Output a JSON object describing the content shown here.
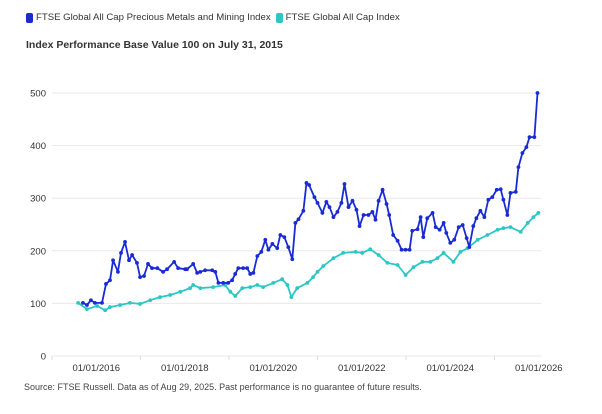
{
  "chart_data": {
    "type": "line",
    "title": "Index Performance Base Value 100 on July 31, 2015",
    "xlabel": "",
    "ylabel": "",
    "xlim": [
      2015.0,
      2026.05
    ],
    "ylim": [
      0,
      500
    ],
    "grid": true,
    "legend_placement": "top-left",
    "y_ticks": [
      0,
      100,
      200,
      300,
      400,
      500
    ],
    "x_ticks": [
      {
        "year": 2016.0,
        "label": "01/01/2016"
      },
      {
        "year": 2018.0,
        "label": "01/01/2018"
      },
      {
        "year": 2020.0,
        "label": "01/01/2020"
      },
      {
        "year": 2022.0,
        "label": "01/01/2022"
      },
      {
        "year": 2024.0,
        "label": "01/01/2024"
      },
      {
        "year": 2026.0,
        "label": "01/01/2026"
      }
    ],
    "series": [
      {
        "name": "FTSE Global All Cap Precious Metals and Mining Index",
        "color": "#1a2bd4",
        "points": [
          [
            2015.7,
            101
          ],
          [
            2015.79,
            97
          ],
          [
            2015.88,
            106
          ],
          [
            2015.97,
            101
          ],
          [
            2016.13,
            101
          ],
          [
            2016.22,
            137
          ],
          [
            2016.31,
            144
          ],
          [
            2016.38,
            182
          ],
          [
            2016.49,
            160
          ],
          [
            2016.56,
            196
          ],
          [
            2016.65,
            217
          ],
          [
            2016.74,
            182
          ],
          [
            2016.81,
            192
          ],
          [
            2016.92,
            177
          ],
          [
            2016.99,
            150
          ],
          [
            2017.08,
            152
          ],
          [
            2017.17,
            175
          ],
          [
            2017.26,
            167
          ],
          [
            2017.38,
            167
          ],
          [
            2017.51,
            160
          ],
          [
            2017.6,
            165
          ],
          [
            2017.76,
            179
          ],
          [
            2017.85,
            167
          ],
          [
            2018.01,
            165
          ],
          [
            2018.05,
            165
          ],
          [
            2018.19,
            175
          ],
          [
            2018.28,
            158
          ],
          [
            2018.35,
            160
          ],
          [
            2018.46,
            163
          ],
          [
            2018.62,
            163
          ],
          [
            2018.69,
            160
          ],
          [
            2018.76,
            139
          ],
          [
            2018.87,
            139
          ],
          [
            2018.98,
            139
          ],
          [
            2019.07,
            144
          ],
          [
            2019.14,
            156
          ],
          [
            2019.21,
            167
          ],
          [
            2019.32,
            167
          ],
          [
            2019.41,
            167
          ],
          [
            2019.48,
            156
          ],
          [
            2019.55,
            158
          ],
          [
            2019.64,
            190
          ],
          [
            2019.73,
            198
          ],
          [
            2019.82,
            221
          ],
          [
            2019.89,
            202
          ],
          [
            2019.98,
            213
          ],
          [
            2020.09,
            205
          ],
          [
            2020.16,
            230
          ],
          [
            2020.25,
            226
          ],
          [
            2020.34,
            207
          ],
          [
            2020.43,
            184
          ],
          [
            2020.5,
            253
          ],
          [
            2020.57,
            260
          ],
          [
            2020.68,
            276
          ],
          [
            2020.75,
            329
          ],
          [
            2020.81,
            325
          ],
          [
            2020.93,
            302
          ],
          [
            2021.0,
            291
          ],
          [
            2021.11,
            272
          ],
          [
            2021.2,
            293
          ],
          [
            2021.27,
            283
          ],
          [
            2021.36,
            264
          ],
          [
            2021.45,
            274
          ],
          [
            2021.54,
            291
          ],
          [
            2021.61,
            327
          ],
          [
            2021.7,
            283
          ],
          [
            2021.79,
            295
          ],
          [
            2021.88,
            278
          ],
          [
            2021.95,
            247
          ],
          [
            2022.04,
            268
          ],
          [
            2022.15,
            268
          ],
          [
            2022.24,
            274
          ],
          [
            2022.31,
            259
          ],
          [
            2022.38,
            295
          ],
          [
            2022.47,
            316
          ],
          [
            2022.56,
            289
          ],
          [
            2022.62,
            268
          ],
          [
            2022.71,
            230
          ],
          [
            2022.81,
            219
          ],
          [
            2022.9,
            202
          ],
          [
            2022.99,
            202
          ],
          [
            2023.08,
            202
          ],
          [
            2023.14,
            238
          ],
          [
            2023.26,
            241
          ],
          [
            2023.33,
            264
          ],
          [
            2023.39,
            226
          ],
          [
            2023.48,
            262
          ],
          [
            2023.6,
            272
          ],
          [
            2023.67,
            245
          ],
          [
            2023.76,
            240
          ],
          [
            2023.85,
            253
          ],
          [
            2023.91,
            234
          ],
          [
            2024.0,
            215
          ],
          [
            2024.09,
            221
          ],
          [
            2024.19,
            245
          ],
          [
            2024.28,
            249
          ],
          [
            2024.37,
            224
          ],
          [
            2024.43,
            207
          ],
          [
            2024.52,
            247
          ],
          [
            2024.59,
            262
          ],
          [
            2024.68,
            276
          ],
          [
            2024.77,
            264
          ],
          [
            2024.86,
            297
          ],
          [
            2024.95,
            302
          ],
          [
            2025.05,
            316
          ],
          [
            2025.14,
            317
          ],
          [
            2025.2,
            297
          ],
          [
            2025.29,
            268
          ],
          [
            2025.36,
            310
          ],
          [
            2025.48,
            312
          ],
          [
            2025.54,
            359
          ],
          [
            2025.63,
            386
          ],
          [
            2025.72,
            397
          ],
          [
            2025.79,
            416
          ],
          [
            2025.9,
            416
          ],
          [
            2025.97,
            500
          ]
        ]
      },
      {
        "name": "FTSE Global All Cap Index",
        "color": "#2cc7c4",
        "points": [
          [
            2015.59,
            101
          ],
          [
            2015.79,
            89
          ],
          [
            2016.02,
            95
          ],
          [
            2016.2,
            87
          ],
          [
            2016.31,
            93
          ],
          [
            2016.54,
            97
          ],
          [
            2016.76,
            101
          ],
          [
            2016.99,
            99
          ],
          [
            2017.22,
            106
          ],
          [
            2017.44,
            112
          ],
          [
            2017.67,
            116
          ],
          [
            2017.9,
            122
          ],
          [
            2018.12,
            129
          ],
          [
            2018.19,
            135
          ],
          [
            2018.35,
            129
          ],
          [
            2018.64,
            131
          ],
          [
            2018.91,
            135
          ],
          [
            2019.03,
            122
          ],
          [
            2019.14,
            114
          ],
          [
            2019.3,
            129
          ],
          [
            2019.48,
            131
          ],
          [
            2019.64,
            135
          ],
          [
            2019.77,
            131
          ],
          [
            2020.0,
            139
          ],
          [
            2020.2,
            146
          ],
          [
            2020.32,
            135
          ],
          [
            2020.41,
            112
          ],
          [
            2020.54,
            129
          ],
          [
            2020.77,
            139
          ],
          [
            2020.9,
            150
          ],
          [
            2021.0,
            160
          ],
          [
            2021.13,
            171
          ],
          [
            2021.36,
            186
          ],
          [
            2021.58,
            196
          ],
          [
            2021.86,
            198
          ],
          [
            2022.01,
            196
          ],
          [
            2022.19,
            203
          ],
          [
            2022.38,
            192
          ],
          [
            2022.58,
            177
          ],
          [
            2022.81,
            173
          ],
          [
            2022.99,
            154
          ],
          [
            2023.17,
            169
          ],
          [
            2023.37,
            179
          ],
          [
            2023.55,
            179
          ],
          [
            2023.71,
            186
          ],
          [
            2023.85,
            196
          ],
          [
            2024.07,
            179
          ],
          [
            2024.23,
            198
          ],
          [
            2024.39,
            205
          ],
          [
            2024.62,
            221
          ],
          [
            2024.84,
            230
          ],
          [
            2025.07,
            240
          ],
          [
            2025.2,
            243
          ],
          [
            2025.36,
            245
          ],
          [
            2025.59,
            236
          ],
          [
            2025.75,
            253
          ],
          [
            2025.88,
            264
          ],
          [
            2025.99,
            272
          ]
        ]
      }
    ]
  },
  "source": "Source: FTSE Russell. Data as of Aug 29, 2025. Past performance is no guarantee of future results."
}
